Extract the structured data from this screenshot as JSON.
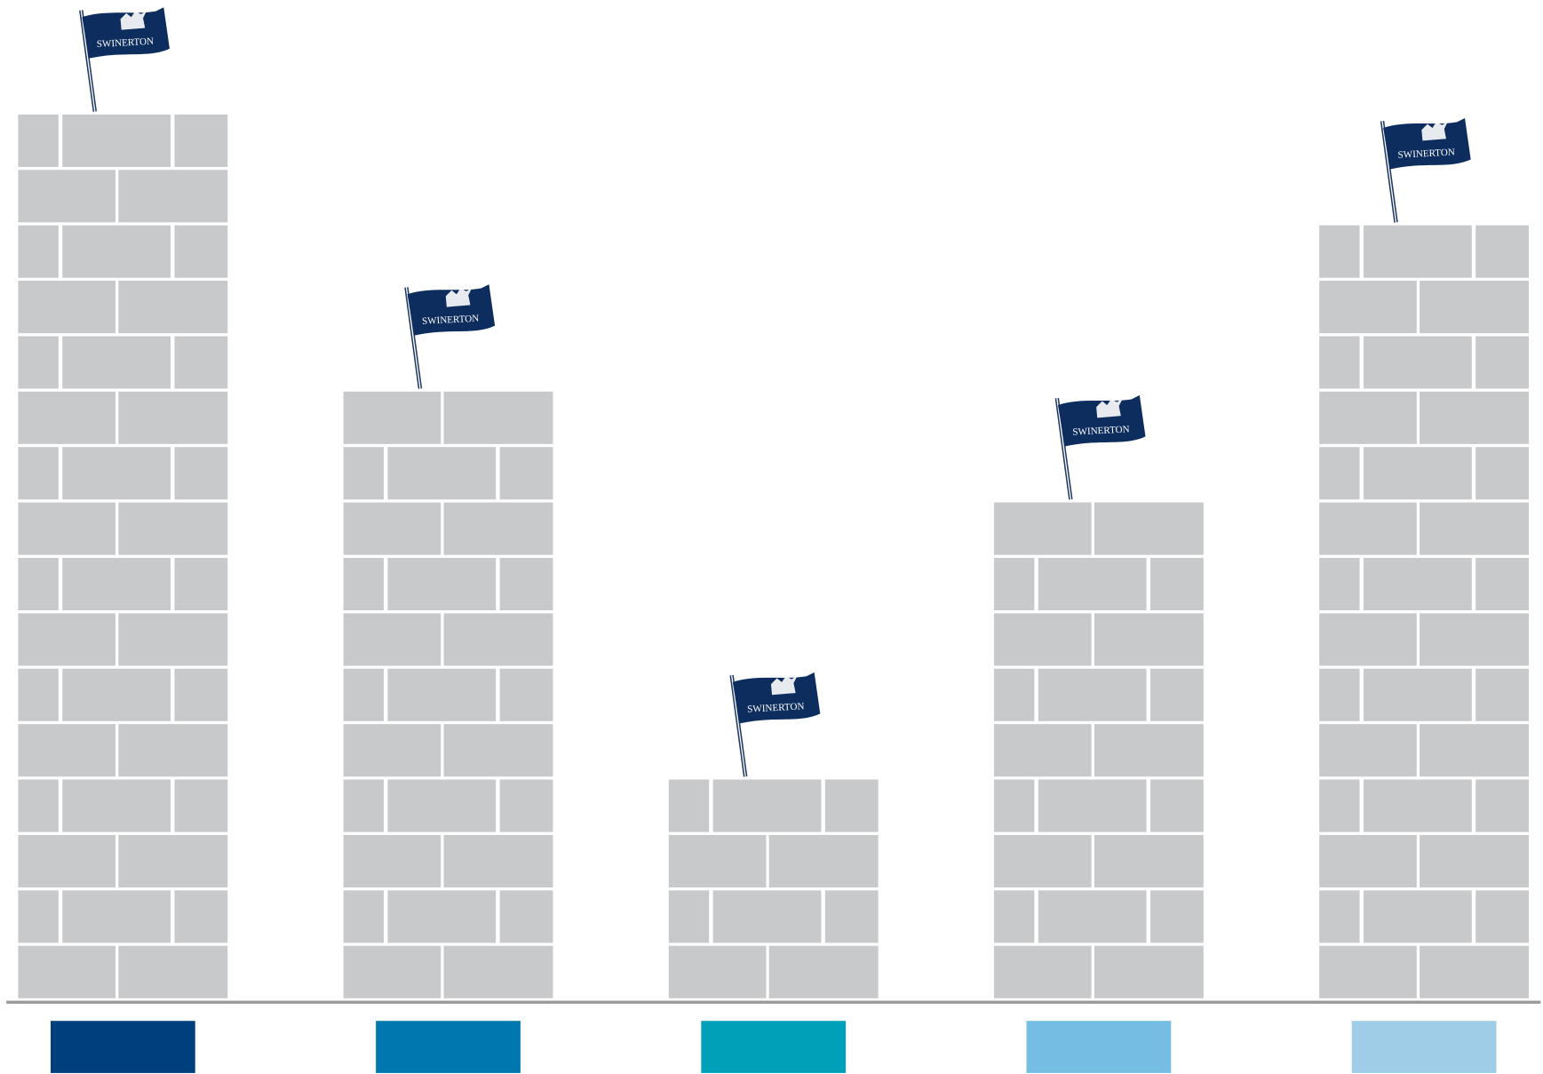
{
  "chart_data": {
    "type": "bar",
    "categories": [
      null,
      null,
      null,
      null,
      null
    ],
    "values": [
      16,
      11,
      4,
      9,
      14
    ],
    "colors": [
      "#003f7d",
      "#0077ae",
      "#00a0b8",
      "#75bde2",
      "#9fcde8"
    ],
    "flag_label": "SWINERTON"
  }
}
